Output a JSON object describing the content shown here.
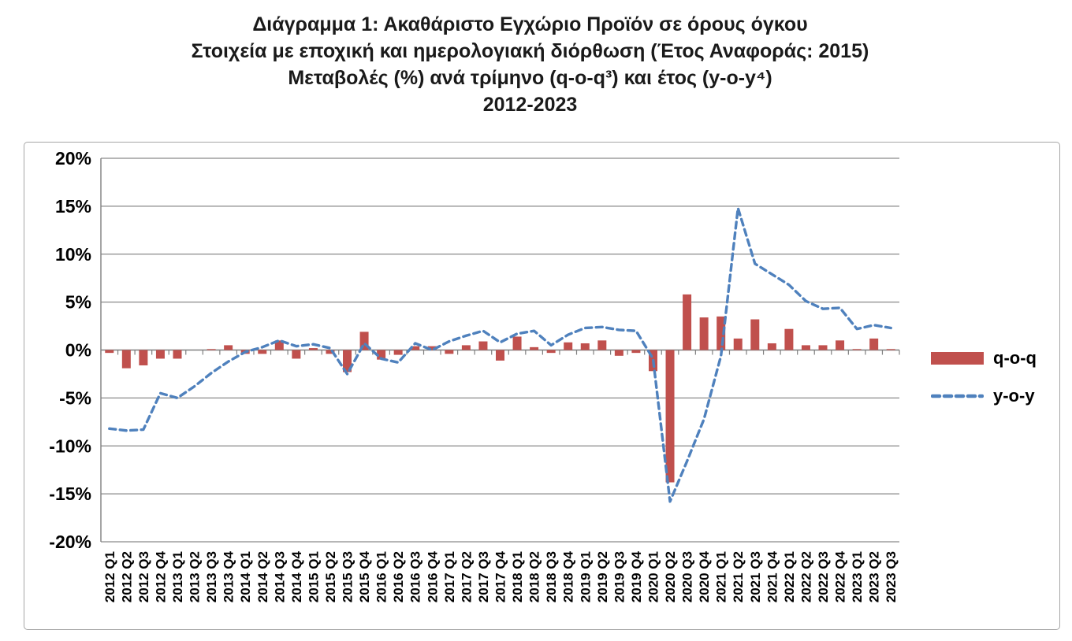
{
  "title": {
    "lines": [
      "Διάγραμμα 1: Ακαθάριστο Εγχώριο Προϊόν σε όρους όγκου",
      "Στοιχεία με εποχική και ημερολογιακή διόρθωση (Έτος Αναφοράς: 2015)",
      "Μεταβολές (%) ανά τρίμηνο (q-o-q³) και έτος (y-o-y⁴)",
      "2012-2023"
    ]
  },
  "legend": {
    "qoq_label": "q-o-q",
    "yoy_label": "y-o-y"
  },
  "colors": {
    "bar": "#C0504D",
    "line": "#4F81BD",
    "grid": "#8a8a8a",
    "axis": "#7f7f7f",
    "border": "#a6a6a6",
    "text": "#000000"
  },
  "y_axis": {
    "tick_labels": [
      "20%",
      "15%",
      "10%",
      "5%",
      "0%",
      "-5%",
      "-10%",
      "-15%",
      "-20%"
    ],
    "max": 20,
    "min": -20,
    "step": 5
  },
  "chart_data": {
    "type": "bar",
    "title": "Διάγραμμα 1: Ακαθάριστο Εγχώριο Προϊόν σε όρους όγκου — Μεταβολές (%) ανά τρίμηνο (q-o-q) και έτος (y-o-y), 2012-2023",
    "xlabel": "",
    "ylabel": "",
    "ylim": [
      -20,
      20
    ],
    "grid": true,
    "legend_position": "right",
    "categories": [
      "2012 Q1",
      "2012 Q2",
      "2012 Q3",
      "2012 Q4",
      "2013 Q1",
      "2013 Q2",
      "2013 Q3",
      "2013 Q4",
      "2014 Q1",
      "2014 Q2",
      "2014 Q3",
      "2014 Q4",
      "2015 Q1",
      "2015 Q2",
      "2015 Q3",
      "2015 Q4",
      "2016 Q1",
      "2016 Q2",
      "2016 Q3",
      "2016 Q4",
      "2017 Q1",
      "2017 Q2",
      "2017 Q3",
      "2017 Q4",
      "2018 Q1",
      "2018 Q2",
      "2018 Q3",
      "2018 Q4",
      "2019 Q1",
      "2019 Q2",
      "2019 Q3",
      "2019 Q4",
      "2020 Q1",
      "2020 Q2",
      "2020 Q3",
      "2020 Q4",
      "2021 Q1",
      "2021 Q2",
      "2021 Q3",
      "2021 Q4",
      "2022 Q1",
      "2022 Q2",
      "2022 Q3",
      "2022 Q4",
      "2023 Q1",
      "2023 Q2",
      "2023 Q3"
    ],
    "series": [
      {
        "name": "q-o-q",
        "type": "bar",
        "color": "#C0504D",
        "values": [
          -0.3,
          -1.9,
          -1.6,
          -0.9,
          -0.9,
          0.0,
          0.1,
          0.5,
          -0.4,
          -0.4,
          1.0,
          -0.9,
          0.2,
          -0.4,
          -2.3,
          1.9,
          -1.0,
          -0.5,
          0.4,
          0.4,
          -0.4,
          0.5,
          0.9,
          -1.1,
          1.4,
          0.3,
          -0.3,
          0.8,
          0.7,
          1.0,
          -0.6,
          -0.3,
          -2.2,
          -13.8,
          5.8,
          3.4,
          3.5,
          1.2,
          3.2,
          0.7,
          2.2,
          0.5,
          0.5,
          1.0,
          0.1,
          1.2,
          0.1
        ]
      },
      {
        "name": "y-o-y",
        "type": "line",
        "dashed": true,
        "color": "#4F81BD",
        "values": [
          -8.2,
          -8.4,
          -8.3,
          -4.5,
          -5.0,
          -3.8,
          -2.4,
          -1.2,
          -0.2,
          0.3,
          1.0,
          0.4,
          0.6,
          0.2,
          -2.5,
          0.7,
          -0.9,
          -1.3,
          0.7,
          0.0,
          0.9,
          1.5,
          2.0,
          0.8,
          1.7,
          2.0,
          0.5,
          1.6,
          2.3,
          2.4,
          2.1,
          2.0,
          -0.9,
          -15.8,
          -11.6,
          -7.2,
          -0.6,
          14.8,
          9.0,
          7.9,
          6.8,
          5.1,
          4.3,
          4.4,
          2.2,
          2.6,
          2.3
        ]
      }
    ]
  }
}
